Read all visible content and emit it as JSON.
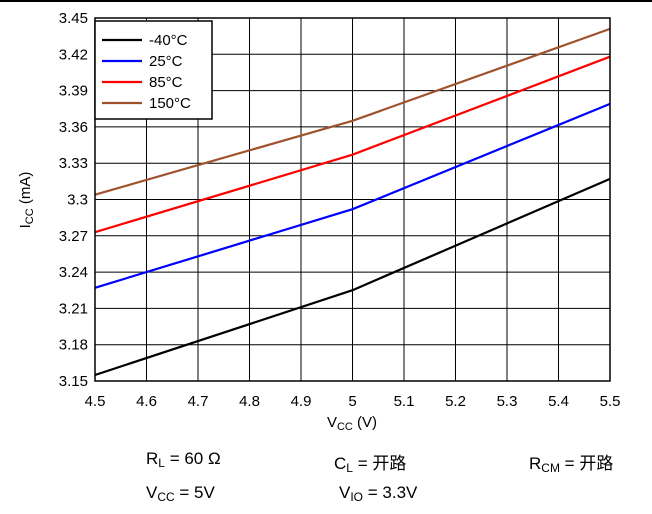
{
  "chart_data": {
    "type": "line",
    "xlabel_main": "V",
    "xlabel_sub": "CC",
    "xlabel_unit": " (V)",
    "ylabel_main": "I",
    "ylabel_sub": "CC",
    "ylabel_unit": " (mA)",
    "xlim": [
      4.5,
      5.5
    ],
    "ylim": [
      3.15,
      3.45
    ],
    "x_ticks": [
      "4.5",
      "4.6",
      "4.7",
      "4.8",
      "4.9",
      "5",
      "5.1",
      "5.2",
      "5.3",
      "5.4",
      "5.5"
    ],
    "y_ticks": [
      "3.15",
      "3.18",
      "3.21",
      "3.24",
      "3.27",
      "3.3",
      "3.33",
      "3.36",
      "3.39",
      "3.42",
      "3.45"
    ],
    "grid": true,
    "legend_position": "top-left",
    "series": [
      {
        "name": "-40°C",
        "color": "#000000",
        "x": [
          4.5,
          5.0,
          5.5
        ],
        "y": [
          3.155,
          3.225,
          3.317
        ]
      },
      {
        "name": "25°C",
        "color": "#0000ff",
        "x": [
          4.5,
          5.0,
          5.5
        ],
        "y": [
          3.227,
          3.292,
          3.379
        ]
      },
      {
        "name": "85°C",
        "color": "#ff0000",
        "x": [
          4.5,
          5.0,
          5.5
        ],
        "y": [
          3.273,
          3.337,
          3.418
        ]
      },
      {
        "name": "150°C",
        "color": "#a0522d",
        "x": [
          4.5,
          5.0,
          5.5
        ],
        "y": [
          3.304,
          3.365,
          3.441
        ]
      }
    ]
  },
  "conditions": {
    "rl_main": "R",
    "rl_sub": "L",
    "rl_value": " = 60 Ω",
    "cl_main": "C",
    "cl_sub": "L",
    "cl_value": " = 开路",
    "rcm_main": "R",
    "rcm_sub": "CM",
    "rcm_value": " = 开路",
    "vcc_main": "V",
    "vcc_sub": "CC",
    "vcc_value": " = 5V",
    "vio_main": "V",
    "vio_sub": "IO",
    "vio_value": " = 3.3V"
  }
}
